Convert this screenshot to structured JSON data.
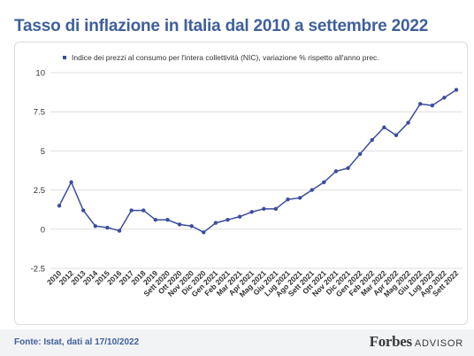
{
  "title": "Tasso di inflazione in Italia dal 2010 a settembre 2022",
  "footer": {
    "source": "Fonte: Istat, dati al 17/10/2022",
    "brand_name": "Forbes",
    "brand_sub": "ADVISOR"
  },
  "colors": {
    "title": "#3f5f9c",
    "series": "#3b4d9e",
    "grid": "#dddddd",
    "footer_bg": "#f2f3f5"
  },
  "chart_data": {
    "type": "line",
    "title": "Tasso di inflazione in Italia dal 2010 a settembre 2022",
    "xlabel": "",
    "ylabel": "",
    "ylim": [
      -2.5,
      10
    ],
    "yticks": [
      -2.5,
      0,
      2.5,
      5,
      7.5,
      10
    ],
    "ytick_labels": [
      "-2.5",
      "0",
      "2.5",
      "5",
      "7.5",
      "10"
    ],
    "grid": true,
    "legend_position": "top",
    "categories": [
      "2010",
      "2012",
      "2013",
      "2014",
      "2015",
      "2016",
      "2017",
      "2018",
      "2019",
      "Sett 2020",
      "Ott 2020",
      "Nov 2020",
      "Dic 2020",
      "Gen 2021",
      "Feb 2021",
      "Mar 2021",
      "Apr 2021",
      "Mag 2021",
      "Giu 2021",
      "Lug 2021",
      "Ago 2021",
      "Sett 2021",
      "Ott 2021",
      "Nov 2021",
      "Dic 2021",
      "Gen 2022",
      "Feb 2022",
      "Mar 2022",
      "Apr 2022",
      "Mag 2022",
      "Giu 2022",
      "Lug 2022",
      "Ago 2022",
      "Sett 2022"
    ],
    "series": [
      {
        "name": "Indice dei prezzi al consumo per l'intera collettività (NIC), variazione % rispetto all'anno prec.",
        "values": [
          1.5,
          3.0,
          1.2,
          0.2,
          0.1,
          -0.1,
          1.2,
          1.2,
          0.6,
          0.6,
          0.3,
          0.2,
          -0.2,
          0.4,
          0.6,
          0.8,
          1.1,
          1.3,
          1.3,
          1.9,
          2.0,
          2.5,
          3.0,
          3.7,
          3.9,
          4.8,
          5.7,
          6.5,
          6.0,
          6.8,
          8.0,
          7.9,
          8.4,
          8.9
        ]
      }
    ]
  }
}
